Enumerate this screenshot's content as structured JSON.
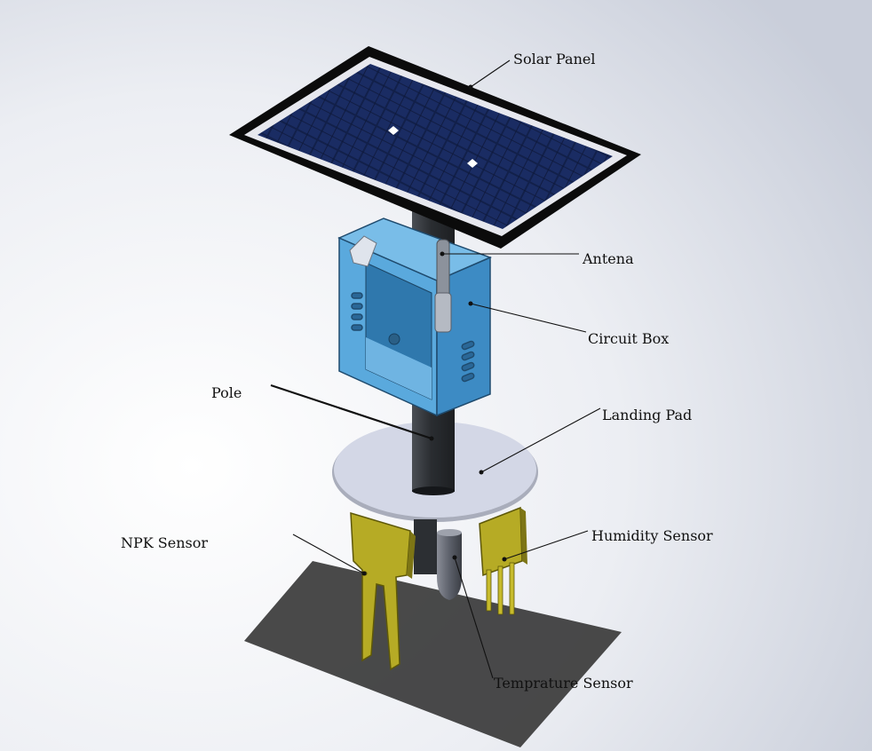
{
  "labels": {
    "solar_panel": "Solar Panel",
    "antena": "Antena",
    "circuit_box": "Circuit Box",
    "pole": "Pole",
    "landing_pad": "Landing Pad",
    "npk_sensor": "NPK Sensor",
    "humidity_sensor": "Humidity Sensor",
    "temprature_sensor": "Temprature Sensor"
  },
  "colors": {
    "background_light": "#ffffff",
    "background_shade": "#c9ceda",
    "panel_frame": "#0b0b0b",
    "panel_cell": "#12204a",
    "box_blue": "#5aa9dd",
    "box_dark": "#2f78ad",
    "pole": "#2f3236",
    "pad": "#d3d7e6",
    "sensor_gold": "#b6ab25",
    "shadow": "#3a3a3a"
  }
}
